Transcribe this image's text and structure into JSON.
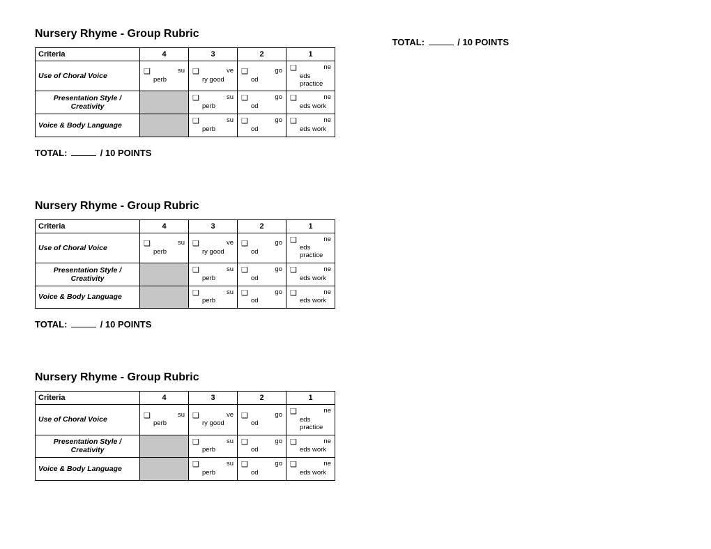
{
  "title": "Nursery Rhyme - Group Rubric",
  "headers": {
    "criteria": "Criteria",
    "c4": "4",
    "c3": "3",
    "c2": "2",
    "c1": "1"
  },
  "rows": [
    {
      "label": "Use of Choral Voice",
      "label_align": "left",
      "c4": {
        "shaded": false,
        "t1": "su",
        "t2": "perb"
      },
      "c3": {
        "shaded": false,
        "t1": "ve",
        "t2": "ry good"
      },
      "c2": {
        "shaded": false,
        "t1": "go",
        "t2": "od"
      },
      "c1": {
        "shaded": false,
        "t1": "ne",
        "t2": "eds practice"
      }
    },
    {
      "label": "Presentation Style / Creativity",
      "label_align": "center",
      "c4": {
        "shaded": true
      },
      "c3": {
        "shaded": false,
        "t1": "su",
        "t2": "perb"
      },
      "c2": {
        "shaded": false,
        "t1": "go",
        "t2": "od"
      },
      "c1": {
        "shaded": false,
        "t1": "ne",
        "t2": "eds work"
      }
    },
    {
      "label": "Voice & Body Language",
      "label_align": "left",
      "c4": {
        "shaded": true
      },
      "c3": {
        "shaded": false,
        "t1": "su",
        "t2": "perb"
      },
      "c2": {
        "shaded": false,
        "t1": "go",
        "t2": "od"
      },
      "c1": {
        "shaded": false,
        "t1": "ne",
        "t2": "eds work"
      }
    }
  ],
  "total_prefix": "TOTAL:",
  "total_suffix": "/  10 POINTS",
  "checkbox_glyph": "❑"
}
